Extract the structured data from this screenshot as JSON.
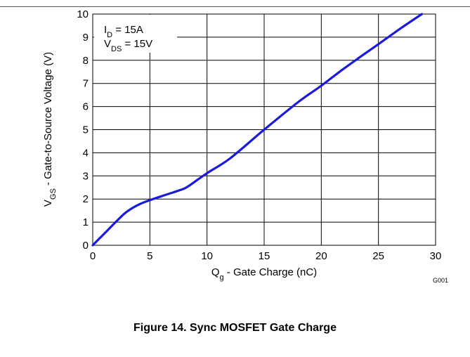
{
  "figure": {
    "caption": "Figure 14. Sync MOSFET Gate Charge",
    "code": "G001"
  },
  "chart_data": {
    "type": "line",
    "xlabel": {
      "main": "Q",
      "sub": "g",
      "rest": " - Gate Charge  (nC)"
    },
    "ylabel": {
      "main": "V",
      "sub": "GS",
      "rest": " - Gate-to-Source Voltage (V)"
    },
    "xlim": [
      0,
      30
    ],
    "ylim": [
      0,
      10
    ],
    "xticks": [
      0,
      5,
      10,
      15,
      20,
      25,
      30
    ],
    "yticks": [
      0,
      1,
      2,
      3,
      4,
      5,
      6,
      7,
      8,
      9,
      10
    ],
    "grid": true,
    "line_color": "#1a1adb",
    "annotations": [
      {
        "main": "I",
        "sub": "D",
        "rest": " = 15A"
      },
      {
        "main": "V",
        "sub": "DS",
        "rest": " = 15V"
      }
    ],
    "series": [
      {
        "x": [
          0,
          1,
          2,
          2.8,
          3.5,
          4.2,
          5,
          6,
          7,
          8,
          8.5,
          10,
          12,
          15,
          18,
          20,
          22,
          25,
          27,
          28.8
        ],
        "y": [
          0,
          0.5,
          1.0,
          1.38,
          1.62,
          1.8,
          1.95,
          2.12,
          2.28,
          2.45,
          2.6,
          3.12,
          3.75,
          5.0,
          6.2,
          6.9,
          7.65,
          8.7,
          9.4,
          10.0
        ]
      }
    ]
  }
}
